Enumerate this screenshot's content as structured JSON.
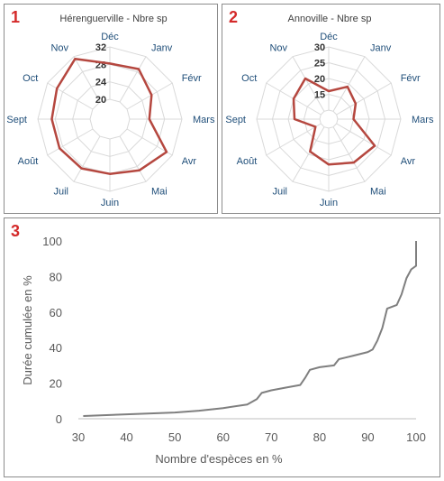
{
  "panels": [
    {
      "number": "1",
      "title": "Hérenguerville - Nbre sp"
    },
    {
      "number": "2",
      "title": "Annoville - Nbre sp"
    },
    {
      "number": "3"
    }
  ],
  "chart_data": [
    {
      "type": "radar",
      "title": "Hérenguerville - Nbre sp",
      "categories": [
        "Déc",
        "Janv",
        "Févr",
        "Mars",
        "Avr",
        "Mai",
        "Juin",
        "Juil",
        "Août",
        "Sept",
        "Oct",
        "Nov"
      ],
      "rlim": [
        20,
        32
      ],
      "rticks": [
        "20",
        "24",
        "28",
        "32"
      ],
      "series": [
        {
          "values": [
            28.2,
            28.7,
            26.5,
            24.5,
            30.5,
            29.0,
            28.0,
            28.5,
            28.8,
            28.8,
            29.5,
            31.4
          ]
        }
      ]
    },
    {
      "type": "radar",
      "title": "Annoville - Nbre sp",
      "categories": [
        "Déc",
        "Janv",
        "Févr",
        "Mars",
        "Avr",
        "Mai",
        "Juin",
        "Juil",
        "Août",
        "Sept",
        "Oct",
        "Nov"
      ],
      "rlim": [
        10,
        30
      ],
      "rticks": [
        "15",
        "20",
        "25",
        "30"
      ],
      "series": [
        {
          "values": [
            16.0,
            19.0,
            17.0,
            15.0,
            24.0,
            23.0,
            21.5,
            19.0,
            12.0,
            18.0,
            20.0,
            22.0
          ]
        }
      ]
    },
    {
      "type": "line",
      "xlabel": "Nombre  d'espèces en %",
      "ylabel": "Durée cumulée en %",
      "xlim": [
        30,
        100
      ],
      "ylim": [
        0,
        100
      ],
      "xticks": [
        "30",
        "40",
        "50",
        "60",
        "70",
        "80",
        "90",
        "100"
      ],
      "yticks": [
        "0",
        "20",
        "40",
        "60",
        "80",
        "100"
      ],
      "series": [
        {
          "x": [
            31,
            40,
            50,
            55,
            60,
            65,
            67,
            68,
            70,
            73,
            76,
            77,
            78,
            80,
            83,
            84,
            87,
            90,
            91,
            92,
            93,
            94,
            96,
            97,
            98,
            99,
            100,
            100
          ],
          "y": [
            1.5,
            2.5,
            3.5,
            4.5,
            6,
            8,
            11,
            14.5,
            16,
            17.5,
            19,
            23,
            27.5,
            29,
            30,
            33.5,
            35.5,
            37.5,
            39,
            44,
            51,
            62,
            64,
            70,
            79,
            84,
            86,
            100
          ]
        }
      ]
    }
  ],
  "colors": {
    "radar_line": "#b5473f",
    "grid": "#d9d9d9",
    "curve": "#7f7f7f",
    "panel_number": "#d42a2a"
  }
}
